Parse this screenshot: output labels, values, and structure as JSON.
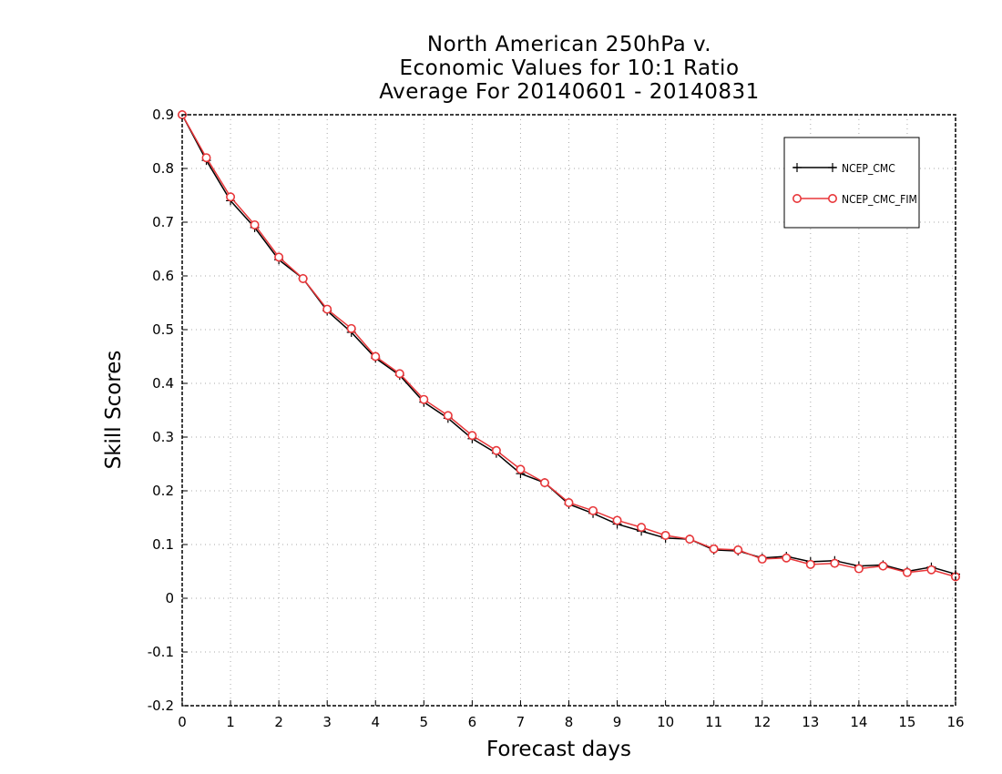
{
  "chart_data": {
    "type": "line",
    "title_lines": [
      "North American 250hPa v.",
      "Economic Values for 10:1 Ratio",
      "Average For 20140601 - 20140831"
    ],
    "xlabel": "Forecast days",
    "ylabel": "Skill Scores",
    "xlim": [
      0,
      16
    ],
    "ylim": [
      -0.2,
      0.9
    ],
    "xticks": [
      0,
      1,
      2,
      3,
      4,
      5,
      6,
      7,
      8,
      9,
      10,
      11,
      12,
      13,
      14,
      15,
      16
    ],
    "yticks": [
      -0.2,
      -0.1,
      0,
      0.1,
      0.2,
      0.3,
      0.4,
      0.5,
      0.6,
      0.7,
      0.8,
      0.9
    ],
    "ytick_labels": [
      "-0.2",
      "-0.1",
      "0",
      "0.1",
      "0.2",
      "0.3",
      "0.4",
      "0.5",
      "0.6",
      "0.7",
      "0.8",
      "0.9"
    ],
    "grid": true,
    "legend_position": "top-right",
    "x": [
      0,
      0.5,
      1,
      1.5,
      2,
      2.5,
      3,
      3.5,
      4,
      4.5,
      5,
      5.5,
      6,
      6.5,
      7,
      7.5,
      8,
      8.5,
      9,
      9.5,
      10,
      10.5,
      11,
      11.5,
      12,
      12.5,
      13,
      13.5,
      14,
      14.5,
      15,
      15.5,
      16
    ],
    "series": [
      {
        "name": "NCEP_CMC",
        "color": "#000000",
        "marker": "plus",
        "values": [
          0.9,
          0.815,
          0.74,
          0.69,
          0.63,
          0.595,
          0.535,
          0.495,
          0.447,
          0.415,
          0.365,
          0.335,
          0.297,
          0.27,
          0.232,
          0.215,
          0.175,
          0.158,
          0.138,
          0.125,
          0.112,
          0.11,
          0.09,
          0.088,
          0.075,
          0.078,
          0.068,
          0.07,
          0.06,
          0.062,
          0.05,
          0.058,
          0.045
        ]
      },
      {
        "name": "NCEP_CMC_FIM",
        "color": "#e8373a",
        "marker": "circle",
        "values": [
          0.9,
          0.82,
          0.747,
          0.695,
          0.635,
          0.595,
          0.538,
          0.502,
          0.45,
          0.418,
          0.37,
          0.34,
          0.303,
          0.275,
          0.24,
          0.215,
          0.178,
          0.163,
          0.145,
          0.132,
          0.117,
          0.11,
          0.092,
          0.09,
          0.073,
          0.075,
          0.063,
          0.065,
          0.055,
          0.06,
          0.048,
          0.053,
          0.04
        ]
      }
    ]
  }
}
